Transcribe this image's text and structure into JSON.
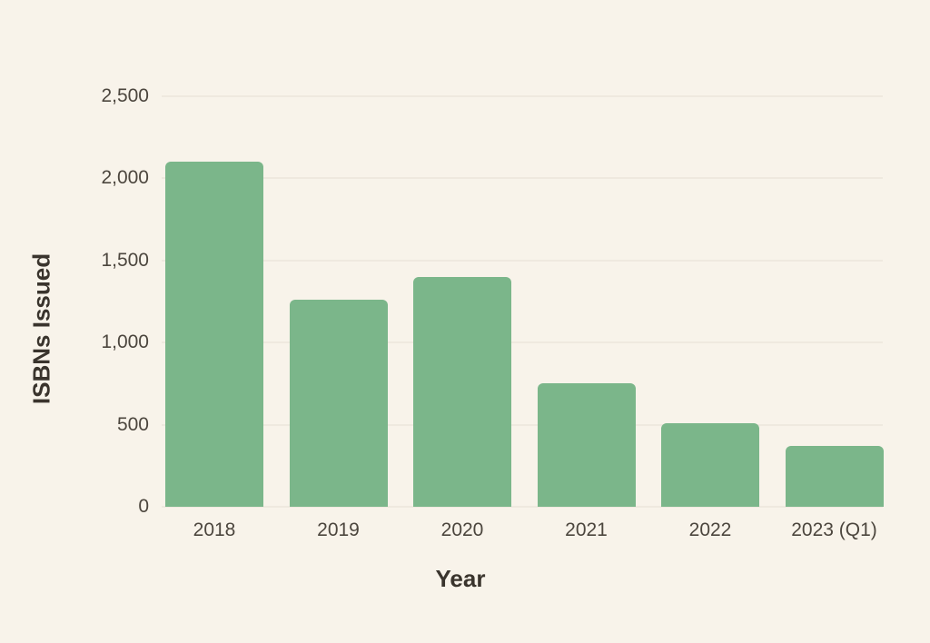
{
  "chart_data": {
    "type": "bar",
    "title": "",
    "categories": [
      "2018",
      "2019",
      "2020",
      "2021",
      "2022",
      "2023 (Q1)"
    ],
    "values": [
      2100,
      1260,
      1400,
      750,
      510,
      370
    ],
    "xlabel": "Year",
    "ylabel": "ISBNs Issued",
    "ylim": [
      0,
      2500
    ],
    "ytick_values": [
      0,
      500,
      1000,
      1500,
      2000,
      2500
    ],
    "ytick_labels": [
      "0",
      "500",
      "1,000",
      "1,500",
      "2,000",
      "2,500"
    ],
    "grid": true,
    "legend_position": "none",
    "colors": {
      "bar": "#7bb68a",
      "background": "#f8f3ea",
      "gridline": "#efe9df",
      "tick_text": "#4c463e",
      "axis_title_text": "#3a342d"
    }
  }
}
